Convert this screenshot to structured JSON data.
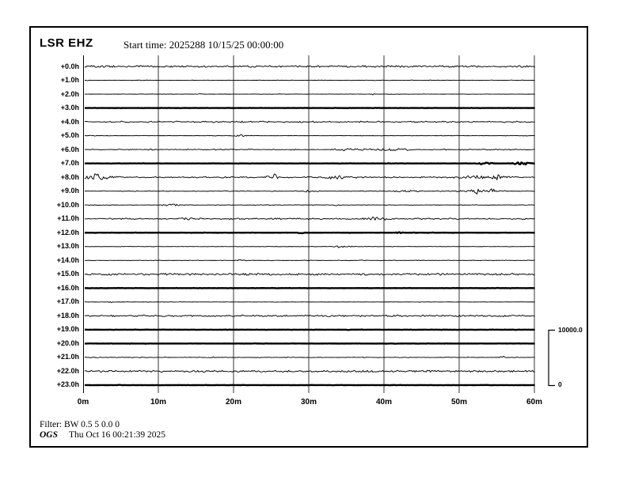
{
  "page": {
    "station": "LSR EHZ",
    "start_time_label": "Start time: 2025288 10/15/25 00:00:00",
    "filter_line": "Filter: BW 0.5 5 0.0 0",
    "credit": "OGS",
    "timestamp": "Thu Oct 16 00:21:39 2025"
  },
  "chart_data": {
    "type": "line",
    "subtype": "helicorder-seismogram",
    "title": "LSR EHZ",
    "start_time": "2025288 10/15/25 00:00:00",
    "x_ticks": [
      "0m",
      "10m",
      "20m",
      "30m",
      "40m",
      "50m",
      "60m"
    ],
    "x_range_minutes": [
      0,
      60
    ],
    "minutes_per_row": 60,
    "row_labels": [
      "+0.0h",
      "+1.0h",
      "+2.0h",
      "+3.0h",
      "+4.0h",
      "+5.0h",
      "+6.0h",
      "+7.0h",
      "+8.0h",
      "+9.0h",
      "+10.0h",
      "+11.0h",
      "+12.0h",
      "+13.0h",
      "+14.0h",
      "+15.0h",
      "+16.0h",
      "+17.0h",
      "+18.0h",
      "+19.0h",
      "+20.0h",
      "+21.0h",
      "+22.0h",
      "+23.0h"
    ],
    "scale_bar": {
      "max_label": "10000.0",
      "min_label": "0",
      "max_value": 10000.0,
      "min_value": 0
    },
    "colors": {
      "trace": "#000000",
      "grid": "#9a9a9a",
      "background": "#ffffff"
    },
    "grid": "vertical-10m",
    "legend": "none",
    "rows": [
      {
        "label": "+0.0h",
        "thick": false,
        "base": 1.15,
        "gate": 0.7,
        "events": []
      },
      {
        "label": "+1.0h",
        "thick": false,
        "base": 0.5,
        "gate": 0.15,
        "events": []
      },
      {
        "label": "+2.0h",
        "thick": false,
        "base": 0.4,
        "gate": 0.1,
        "events": [
          {
            "t": 15.3,
            "w": 0.7,
            "a": 1.2
          },
          {
            "t": 38.5,
            "w": 0.5,
            "a": 1.6
          }
        ]
      },
      {
        "label": "+3.0h",
        "thick": true,
        "base": 0.3,
        "gate": 0.15,
        "events": []
      },
      {
        "label": "+4.0h",
        "thick": false,
        "base": 1.0,
        "gate": 0.5,
        "events": []
      },
      {
        "label": "+5.0h",
        "thick": false,
        "base": 0.45,
        "gate": 0.15,
        "events": [
          {
            "t": 1.2,
            "w": 0.8,
            "a": 0.9
          },
          {
            "t": 21.0,
            "w": 1.4,
            "a": 1.4
          }
        ]
      },
      {
        "label": "+6.0h",
        "thick": false,
        "base": 0.75,
        "gate": 0.35,
        "events": [
          {
            "t": 9.0,
            "w": 0.8,
            "a": 1.1
          },
          {
            "t": 35.5,
            "w": 2.8,
            "a": 1.8
          },
          {
            "t": 41.0,
            "w": 3.5,
            "a": 1.5
          },
          {
            "t": 46.5,
            "w": 0.6,
            "a": 1.1
          }
        ]
      },
      {
        "label": "+7.0h",
        "thick": true,
        "base": 0.3,
        "gate": 0.15,
        "events": [
          {
            "t": 53.5,
            "w": 1.1,
            "a": 2.4
          },
          {
            "t": 58.2,
            "w": 1.5,
            "a": 2.0
          }
        ]
      },
      {
        "label": "+8.0h",
        "thick": false,
        "base": 0.85,
        "gate": 0.5,
        "events": [
          {
            "t": 1.6,
            "w": 2.8,
            "a": 3.0
          },
          {
            "t": 1.6,
            "w": 0.5,
            "a": 4.6
          },
          {
            "t": 25.5,
            "w": 1.6,
            "a": 2.2
          },
          {
            "t": 25.5,
            "w": 0.4,
            "a": 4.2
          },
          {
            "t": 33.5,
            "w": 2.8,
            "a": 2.0
          },
          {
            "t": 53.0,
            "w": 4.5,
            "a": 2.0
          },
          {
            "t": 55.0,
            "w": 0.6,
            "a": 3.6
          }
        ]
      },
      {
        "label": "+9.0h",
        "thick": false,
        "base": 0.6,
        "gate": 0.3,
        "events": [
          {
            "t": 30.0,
            "w": 1.4,
            "a": 1.6
          },
          {
            "t": 43.0,
            "w": 2.2,
            "a": 1.6
          },
          {
            "t": 52.5,
            "w": 3.5,
            "a": 1.8
          },
          {
            "t": 52.4,
            "w": 0.4,
            "a": 3.6
          },
          {
            "t": 54.4,
            "w": 0.4,
            "a": 3.6
          }
        ]
      },
      {
        "label": "+10.0h",
        "thick": false,
        "base": 0.5,
        "gate": 0.22,
        "events": [
          {
            "t": 11.8,
            "w": 1.8,
            "a": 1.8
          },
          {
            "t": 33.7,
            "w": 0.6,
            "a": 1.4
          }
        ]
      },
      {
        "label": "+11.0h",
        "thick": false,
        "base": 0.95,
        "gate": 0.5,
        "events": [
          {
            "t": 14.0,
            "w": 1.1,
            "a": 1.5
          },
          {
            "t": 38.7,
            "w": 2.2,
            "a": 1.9
          }
        ]
      },
      {
        "label": "+12.0h",
        "thick": true,
        "base": 0.3,
        "gate": 0.15,
        "events": [
          {
            "t": 29.0,
            "w": 0.4,
            "a": 1.2
          },
          {
            "t": 42.0,
            "w": 0.6,
            "a": 1.0
          }
        ]
      },
      {
        "label": "+13.0h",
        "thick": false,
        "base": 0.45,
        "gate": 0.15,
        "events": [
          {
            "t": 27.5,
            "w": 0.4,
            "a": 0.7
          },
          {
            "t": 34.5,
            "w": 1.8,
            "a": 1.9
          }
        ]
      },
      {
        "label": "+14.0h",
        "thick": false,
        "base": 0.5,
        "gate": 0.18,
        "events": [
          {
            "t": 21.0,
            "w": 0.9,
            "a": 1.1
          },
          {
            "t": 37.3,
            "w": 0.8,
            "a": 0.9
          }
        ]
      },
      {
        "label": "+15.0h",
        "thick": false,
        "base": 1.2,
        "gate": 0.75,
        "events": []
      },
      {
        "label": "+16.0h",
        "thick": true,
        "base": 0.3,
        "gate": 0.15,
        "events": []
      },
      {
        "label": "+17.0h",
        "thick": false,
        "base": 0.42,
        "gate": 0.12,
        "events": [
          {
            "t": 3.7,
            "w": 0.5,
            "a": 0.9
          }
        ]
      },
      {
        "label": "+18.0h",
        "thick": false,
        "base": 1.1,
        "gate": 0.7,
        "events": []
      },
      {
        "label": "+19.0h",
        "thick": true,
        "base": 0.3,
        "gate": 0.15,
        "events": []
      },
      {
        "label": "+20.0h",
        "thick": true,
        "base": 0.3,
        "gate": 0.15,
        "events": []
      },
      {
        "label": "+21.0h",
        "thick": false,
        "base": 0.55,
        "gate": 0.25,
        "events": [
          {
            "t": 17.4,
            "w": 0.12,
            "a": 5.5
          },
          {
            "t": 55.8,
            "w": 0.8,
            "a": 1.5
          }
        ]
      },
      {
        "label": "+22.0h",
        "thick": false,
        "base": 1.15,
        "gate": 0.72,
        "events": []
      },
      {
        "label": "+23.0h",
        "thick": true,
        "base": 0.3,
        "gate": 0.15,
        "events": []
      }
    ]
  }
}
